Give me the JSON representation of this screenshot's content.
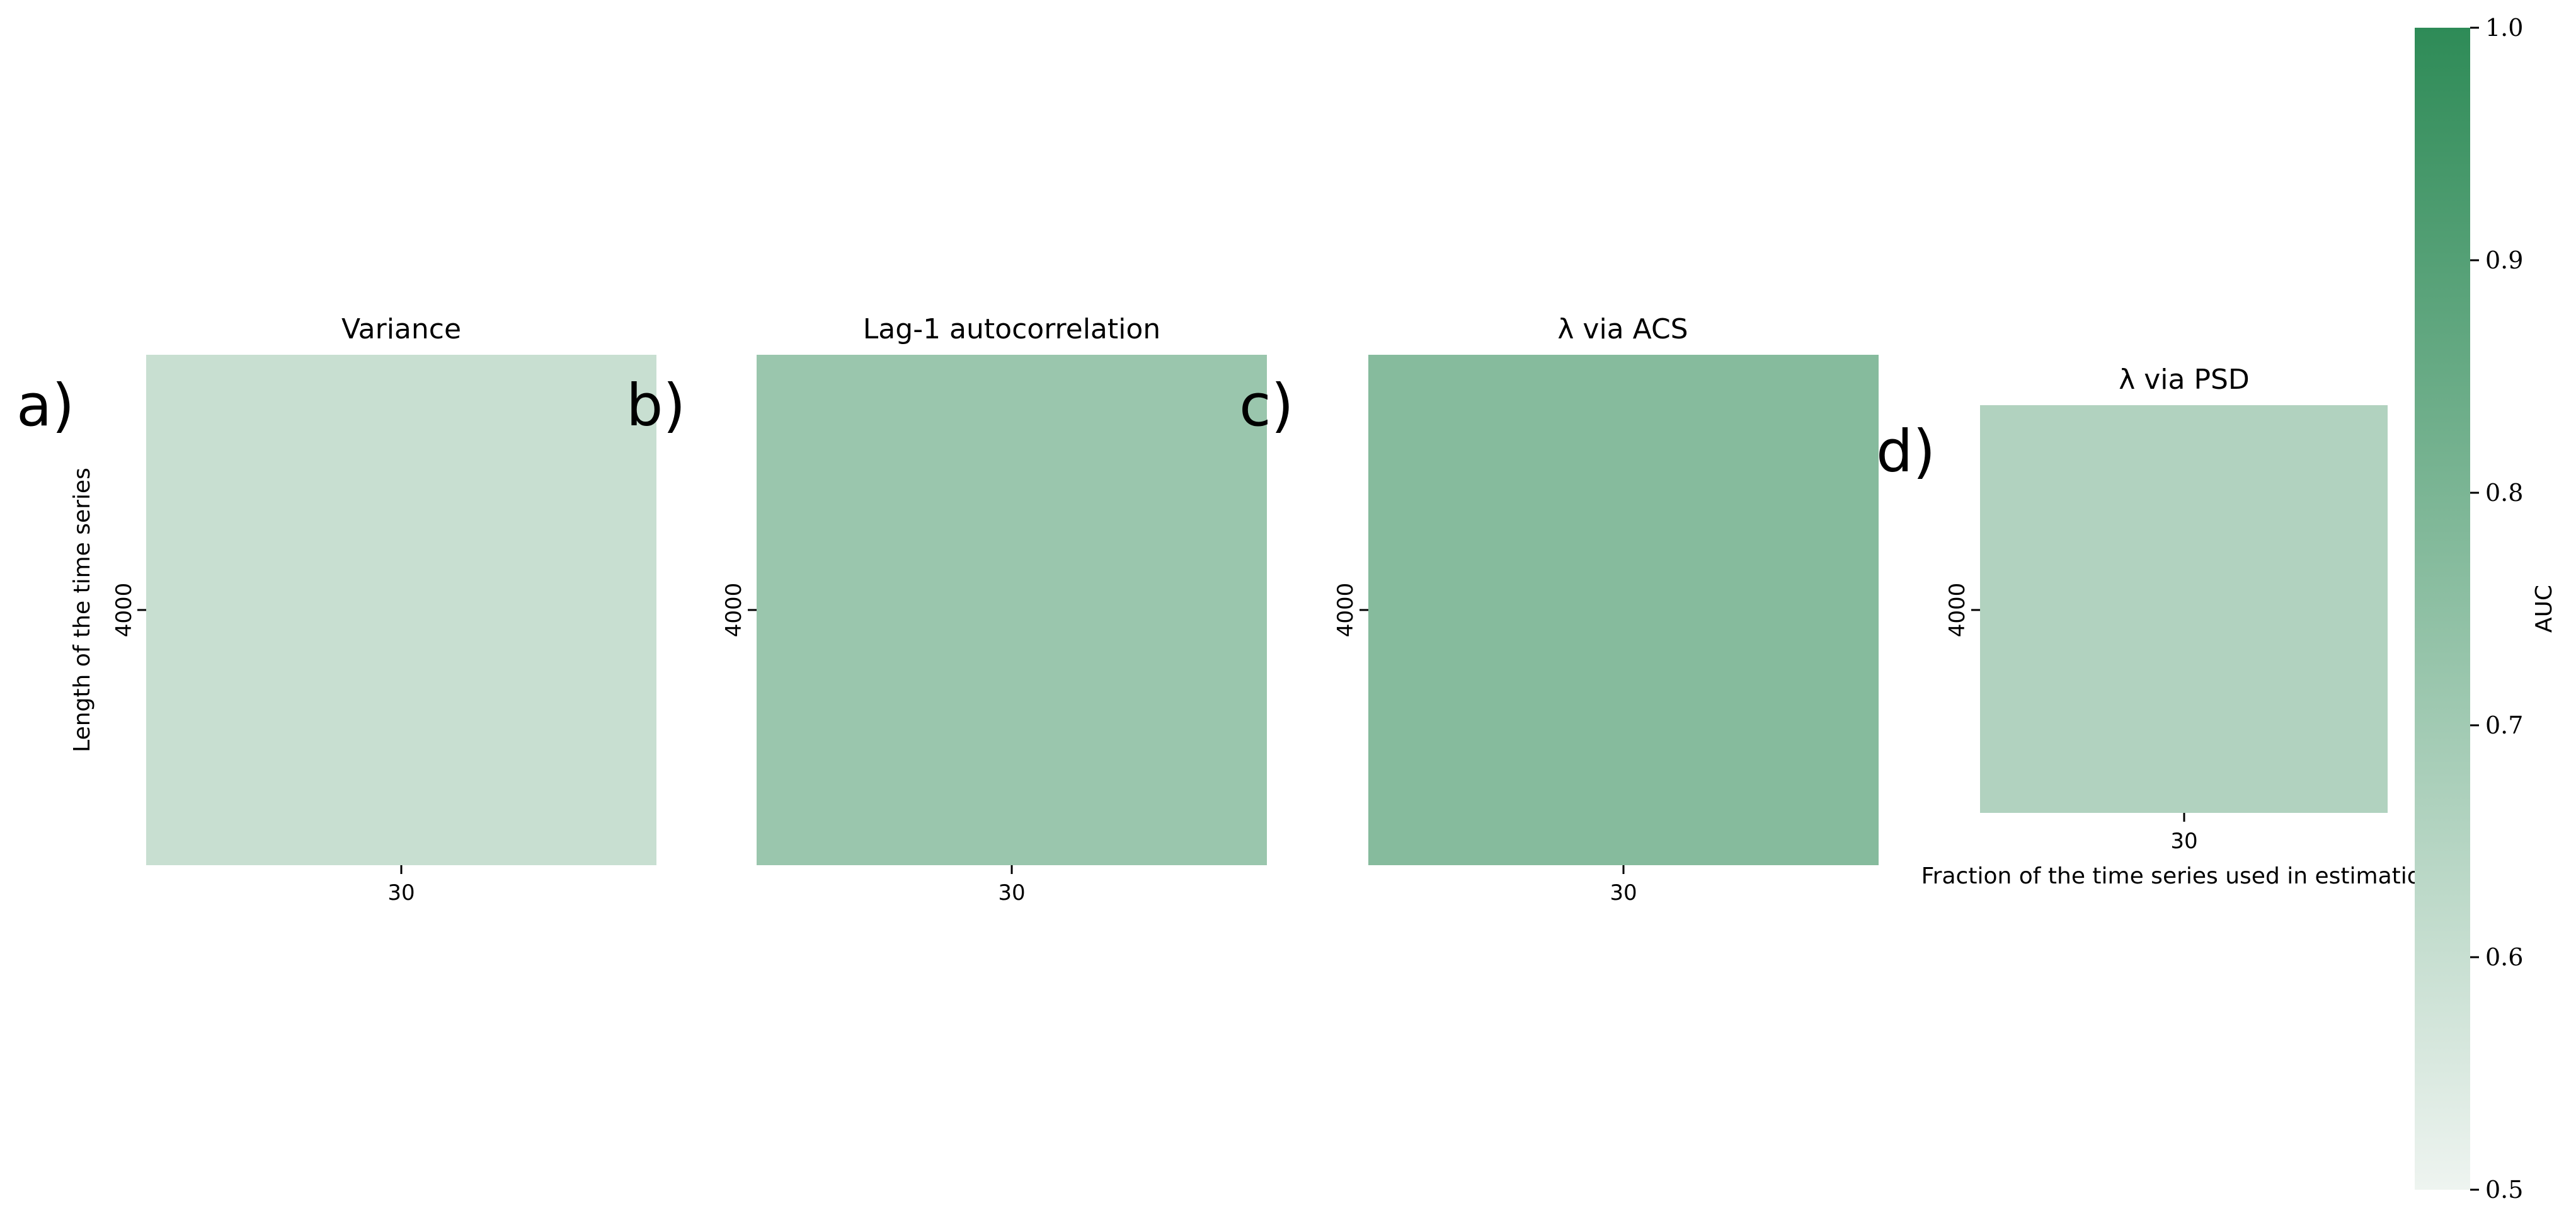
{
  "chart_data": {
    "type": "heatmap",
    "value_range": [
      0.5,
      1.0
    ],
    "colormap": [
      "#eef4f0",
      "#2e8b57"
    ],
    "panels": [
      {
        "letter": "a)",
        "title": "Variance",
        "x_ticks": [
          "30"
        ],
        "y_ticks": [
          "4000"
        ],
        "xlabel": "",
        "ylabel": "Length of the time series",
        "value": 0.6
      },
      {
        "letter": "b)",
        "title": "Lag-1 autocorrelation",
        "x_ticks": [
          "30"
        ],
        "y_ticks": [
          "4000"
        ],
        "xlabel": "",
        "ylabel": "",
        "value": 0.72
      },
      {
        "letter": "c)",
        "title": "λ via ACS",
        "x_ticks": [
          "30"
        ],
        "y_ticks": [
          "4000"
        ],
        "xlabel": "",
        "ylabel": "",
        "value": 0.77
      },
      {
        "letter": "d)",
        "title": "λ via PSD",
        "x_ticks": [
          "30"
        ],
        "y_ticks": [
          "4000"
        ],
        "xlabel": "Fraction of the time series used in estimations",
        "ylabel": "",
        "value": 0.66
      }
    ],
    "colorbar": {
      "label": "AUC",
      "ticks": [
        "0.5",
        "0.6",
        "0.7",
        "0.8",
        "0.9",
        "1.0"
      ],
      "range": [
        0.5,
        1.0
      ]
    }
  }
}
